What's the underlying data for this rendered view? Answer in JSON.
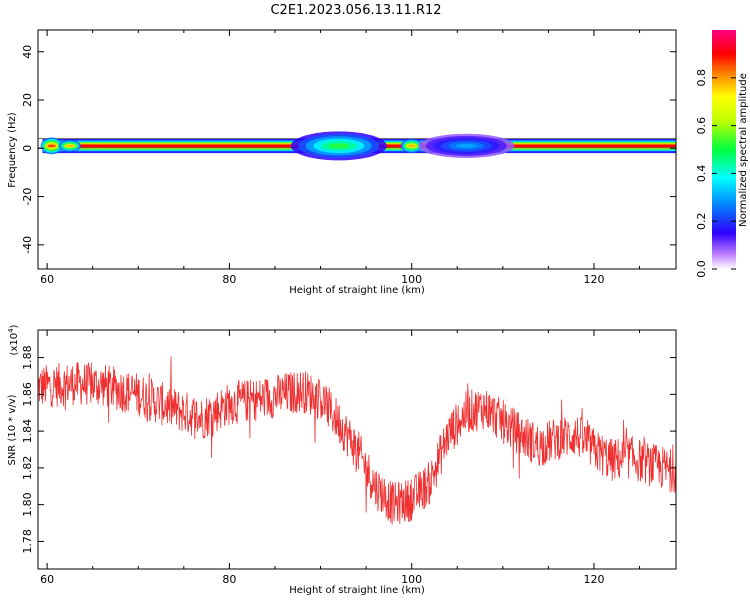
{
  "title": "C2E1.2023.056.13.11.R12",
  "chart_data": [
    {
      "type": "heatmap",
      "xlabel": "Height of straight line (km)",
      "ylabel": "Frequency (Hz)",
      "xlim": [
        59,
        129
      ],
      "ylim": [
        -50,
        49
      ],
      "x_ticks": [
        60,
        80,
        100,
        120
      ],
      "y_ticks": [
        40,
        20,
        0,
        -20,
        -40
      ],
      "x_tick_labels": [
        "60",
        "80",
        "100",
        "120"
      ],
      "y_tick_labels": [
        "40",
        "20",
        "0",
        "-20",
        "-40"
      ],
      "colorbar": {
        "label": "Normalized spectral amplitude",
        "range": [
          0,
          1
        ],
        "ticks": [
          0.0,
          0.2,
          0.4,
          0.6,
          0.8
        ],
        "tick_labels": [
          "0.0",
          "0.2",
          "0.4",
          "0.6",
          "0.8"
        ],
        "colormap": "rainbow (white-purple-blue-cyan-green-yellow-red-magenta)"
      },
      "band": {
        "center_freq_hz": 1,
        "features": [
          {
            "x": 60.5,
            "half_width_hz": 3.5,
            "amplitude": 1.0
          },
          {
            "x": 62.5,
            "half_width_hz": 2.5,
            "amplitude": 0.9
          },
          {
            "x": 92,
            "half_width_hz": 6,
            "amplitude": 0.6
          },
          {
            "x": 100,
            "half_width_hz": 3,
            "amplitude": 0.9
          },
          {
            "x": 106,
            "half_width_hz": 5,
            "amplitude": 0.35
          }
        ]
      }
    },
    {
      "type": "line",
      "xlabel": "Height of straight line (km)",
      "ylabel": "SNR (10 * v/v)",
      "y_multiplier": "(x10",
      "y_multiplier_exp": "4",
      "y_multiplier_close": ")",
      "xlim": [
        59,
        129
      ],
      "ylim": [
        1.765,
        1.895
      ],
      "x_ticks": [
        60,
        80,
        100,
        120
      ],
      "y_ticks": [
        1.78,
        1.8,
        1.82,
        1.84,
        1.86,
        1.88
      ],
      "x_tick_labels": [
        "60",
        "80",
        "100",
        "120"
      ],
      "y_tick_labels": [
        "1.78",
        "1.80",
        "1.82",
        "1.84",
        "1.86",
        "1.88"
      ],
      "color": "#f03030",
      "series": [
        {
          "trend_x": [
            59,
            63,
            66,
            70,
            74,
            77,
            80,
            84,
            88,
            90,
            92,
            94,
            96,
            98,
            100,
            102,
            104,
            106,
            108,
            110,
            112,
            114,
            116,
            118,
            120,
            122,
            124,
            126,
            129
          ],
          "trend_y": [
            1.864,
            1.866,
            1.865,
            1.86,
            1.852,
            1.847,
            1.855,
            1.858,
            1.862,
            1.858,
            1.845,
            1.83,
            1.81,
            1.8,
            1.803,
            1.812,
            1.838,
            1.85,
            1.853,
            1.845,
            1.838,
            1.832,
            1.836,
            1.838,
            1.83,
            1.824,
            1.826,
            1.822,
            1.818
          ],
          "noise_amplitude": 0.012
        }
      ]
    }
  ]
}
